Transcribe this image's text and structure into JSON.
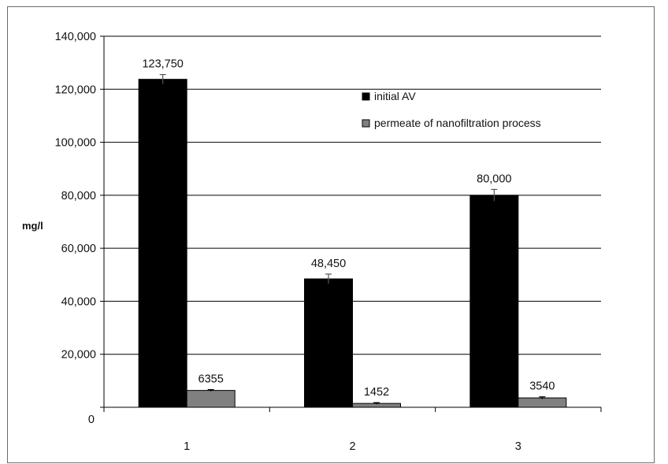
{
  "chart_data": {
    "type": "bar",
    "title": "",
    "xlabel": "",
    "ylabel": "mg/l",
    "categories": [
      "1",
      "2",
      "3"
    ],
    "ylim": [
      0,
      140000
    ],
    "yticks": [
      0,
      20000,
      40000,
      60000,
      80000,
      100000,
      120000,
      140000
    ],
    "ytick_labels": [
      "0",
      "20,000",
      "40,000",
      "60,000",
      "80,000",
      "100,000",
      "120,000",
      "140,000"
    ],
    "grid": "horizontal",
    "legend_position": "top-right (inside plot)",
    "series": [
      {
        "name": "initial AV",
        "color": "#000000",
        "values": [
          123750,
          48450,
          80000
        ],
        "labels": [
          "123,750",
          "48,450",
          "80,000"
        ],
        "error": [
          1800,
          1800,
          2200
        ]
      },
      {
        "name": "permeate of nanofiltration process",
        "color": "#808080",
        "values": [
          6355,
          1452,
          3540
        ],
        "labels": [
          "6355",
          "1452",
          "3540"
        ],
        "error": [
          300,
          300,
          400
        ]
      }
    ]
  }
}
